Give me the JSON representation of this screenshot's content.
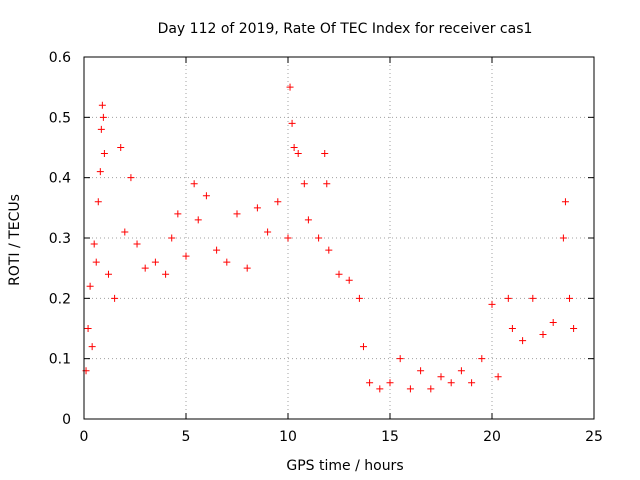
{
  "chart_data": {
    "type": "scatter",
    "title": "Day 112 of 2019, Rate Of TEC Index for receiver cas1",
    "xlabel": "GPS time / hours",
    "ylabel": "ROTI / TECUs",
    "xlim": [
      0,
      25
    ],
    "ylim": [
      0,
      0.6
    ],
    "x_ticks": [
      0,
      5,
      10,
      15,
      20,
      25
    ],
    "y_ticks": [
      0,
      0.1,
      0.2,
      0.3,
      0.4,
      0.5,
      0.6
    ],
    "x_tick_labels": [
      "0",
      "5",
      "10",
      "15",
      "20",
      "25"
    ],
    "y_tick_labels": [
      "0",
      "0.1",
      "0.2",
      "0.3",
      "0.4",
      "0.5",
      "0.6"
    ],
    "grid": true,
    "marker": "+",
    "marker_color": "#ff0000",
    "series": [
      {
        "name": "ROTI",
        "points": [
          [
            0.1,
            0.08
          ],
          [
            0.2,
            0.15
          ],
          [
            0.3,
            0.22
          ],
          [
            0.4,
            0.12
          ],
          [
            0.5,
            0.29
          ],
          [
            0.6,
            0.26
          ],
          [
            0.7,
            0.36
          ],
          [
            0.8,
            0.41
          ],
          [
            0.85,
            0.48
          ],
          [
            0.9,
            0.52
          ],
          [
            0.95,
            0.5
          ],
          [
            1.0,
            0.44
          ],
          [
            1.2,
            0.24
          ],
          [
            1.5,
            0.2
          ],
          [
            1.8,
            0.45
          ],
          [
            2.0,
            0.31
          ],
          [
            2.3,
            0.4
          ],
          [
            2.6,
            0.29
          ],
          [
            3.0,
            0.25
          ],
          [
            3.5,
            0.26
          ],
          [
            4.0,
            0.24
          ],
          [
            4.3,
            0.3
          ],
          [
            4.6,
            0.34
          ],
          [
            5.0,
            0.27
          ],
          [
            5.4,
            0.39
          ],
          [
            5.6,
            0.33
          ],
          [
            6.0,
            0.37
          ],
          [
            6.5,
            0.28
          ],
          [
            7.0,
            0.26
          ],
          [
            7.5,
            0.34
          ],
          [
            8.0,
            0.25
          ],
          [
            8.5,
            0.35
          ],
          [
            9.0,
            0.31
          ],
          [
            9.5,
            0.36
          ],
          [
            10.0,
            0.3
          ],
          [
            10.1,
            0.55
          ],
          [
            10.2,
            0.49
          ],
          [
            10.3,
            0.45
          ],
          [
            10.5,
            0.44
          ],
          [
            10.8,
            0.39
          ],
          [
            11.0,
            0.33
          ],
          [
            11.5,
            0.3
          ],
          [
            11.8,
            0.44
          ],
          [
            11.9,
            0.39
          ],
          [
            12.0,
            0.28
          ],
          [
            12.5,
            0.24
          ],
          [
            13.0,
            0.23
          ],
          [
            13.5,
            0.2
          ],
          [
            13.7,
            0.12
          ],
          [
            14.0,
            0.06
          ],
          [
            14.5,
            0.05
          ],
          [
            15.0,
            0.06
          ],
          [
            15.5,
            0.1
          ],
          [
            16.0,
            0.05
          ],
          [
            16.5,
            0.08
          ],
          [
            17.0,
            0.05
          ],
          [
            17.5,
            0.07
          ],
          [
            18.0,
            0.06
          ],
          [
            18.5,
            0.08
          ],
          [
            19.0,
            0.06
          ],
          [
            19.5,
            0.1
          ],
          [
            20.0,
            0.19
          ],
          [
            20.3,
            0.07
          ],
          [
            20.8,
            0.2
          ],
          [
            21.0,
            0.15
          ],
          [
            21.5,
            0.13
          ],
          [
            22.0,
            0.2
          ],
          [
            22.5,
            0.14
          ],
          [
            23.0,
            0.16
          ],
          [
            23.5,
            0.3
          ],
          [
            23.6,
            0.36
          ],
          [
            23.8,
            0.2
          ],
          [
            24.0,
            0.15
          ]
        ]
      }
    ]
  }
}
